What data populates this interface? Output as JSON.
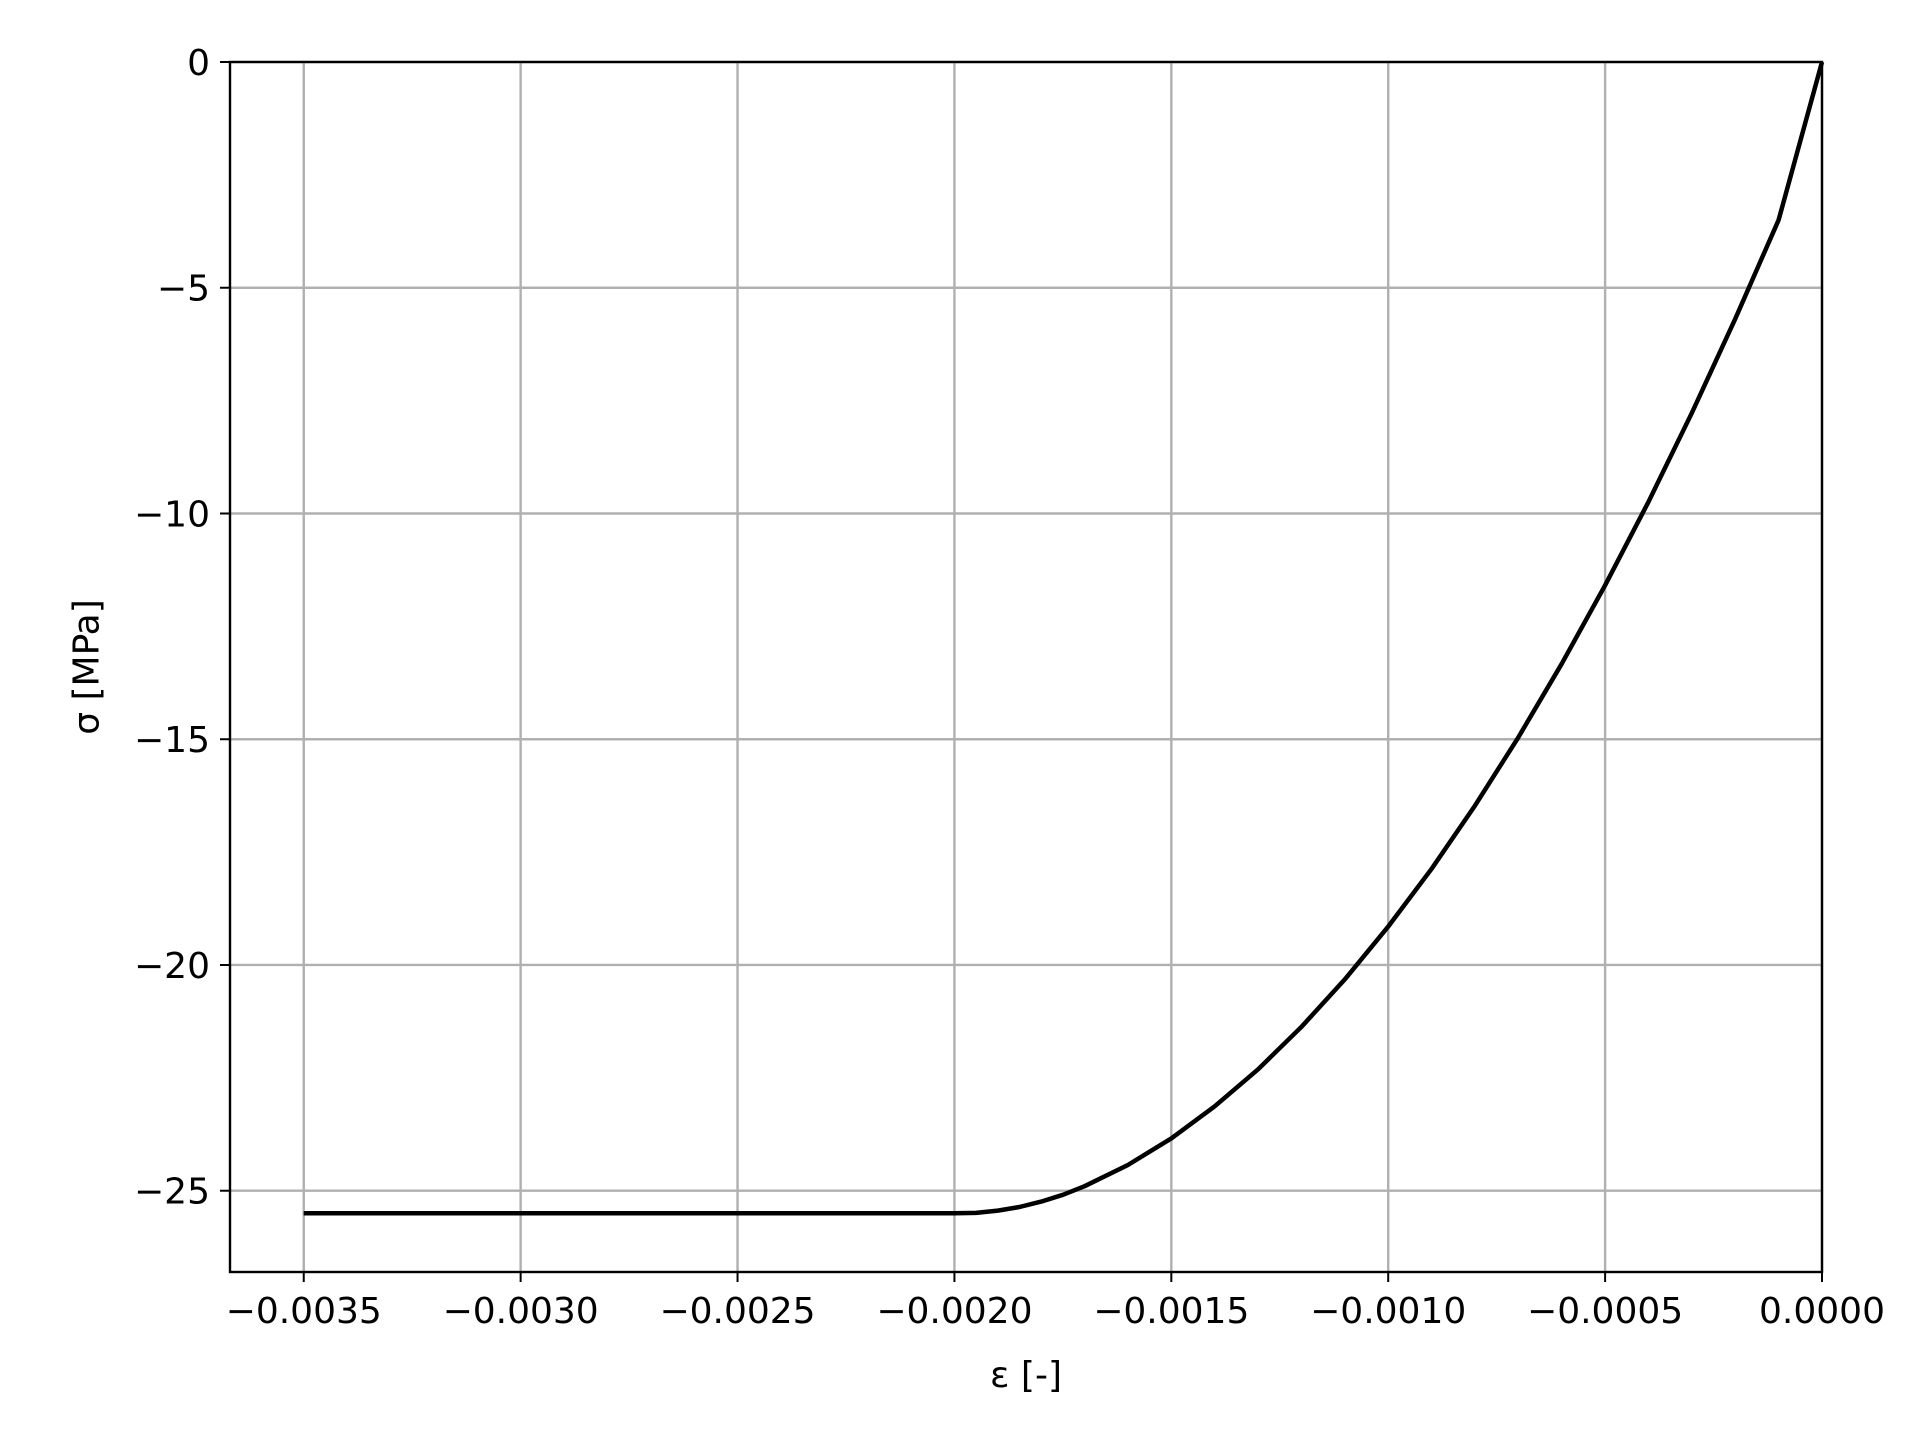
{
  "chart_data": {
    "type": "line",
    "title": "",
    "xlabel": "ε [-]",
    "ylabel": "σ [MPa]",
    "xlim": [
      -0.00367,
      0.0
    ],
    "ylim": [
      -26.8,
      0.0
    ],
    "grid": true,
    "x_ticks": [
      {
        "value": -0.0035,
        "label": "−0.0035"
      },
      {
        "value": -0.003,
        "label": "−0.0030"
      },
      {
        "value": -0.0025,
        "label": "−0.0025"
      },
      {
        "value": -0.002,
        "label": "−0.0020"
      },
      {
        "value": -0.0015,
        "label": "−0.0015"
      },
      {
        "value": -0.001,
        "label": "−0.0010"
      },
      {
        "value": -0.0005,
        "label": "−0.0005"
      },
      {
        "value": 0.0,
        "label": "0.0000"
      }
    ],
    "y_ticks": [
      {
        "value": 0,
        "label": "0"
      },
      {
        "value": -5,
        "label": "−5"
      },
      {
        "value": -10,
        "label": "−10"
      },
      {
        "value": -15,
        "label": "−15"
      },
      {
        "value": -20,
        "label": "−20"
      },
      {
        "value": -25,
        "label": "−25"
      }
    ],
    "series": [
      {
        "color": "#000000",
        "x": [
          -0.0035,
          -0.003,
          -0.0025,
          -0.002,
          -0.00195,
          -0.0019,
          -0.00185,
          -0.0018,
          -0.00175,
          -0.0017,
          -0.0016,
          -0.0015,
          -0.0014,
          -0.0013,
          -0.0012,
          -0.0011,
          -0.001,
          -0.0009,
          -0.0008,
          -0.0007,
          -0.0006,
          -0.0005,
          -0.0004,
          -0.0003,
          -0.0002,
          -0.0001,
          0.0
        ],
        "y": [
          -25.5,
          -25.5,
          -25.5,
          -25.5,
          -25.49,
          -25.44,
          -25.36,
          -25.24,
          -25.09,
          -24.9,
          -24.43,
          -23.84,
          -23.13,
          -22.31,
          -21.37,
          -20.32,
          -19.15,
          -17.87,
          -16.47,
          -14.96,
          -13.33,
          -11.59,
          -9.74,
          -7.77,
          -5.69,
          -3.5,
          0.0
        ]
      }
    ]
  }
}
